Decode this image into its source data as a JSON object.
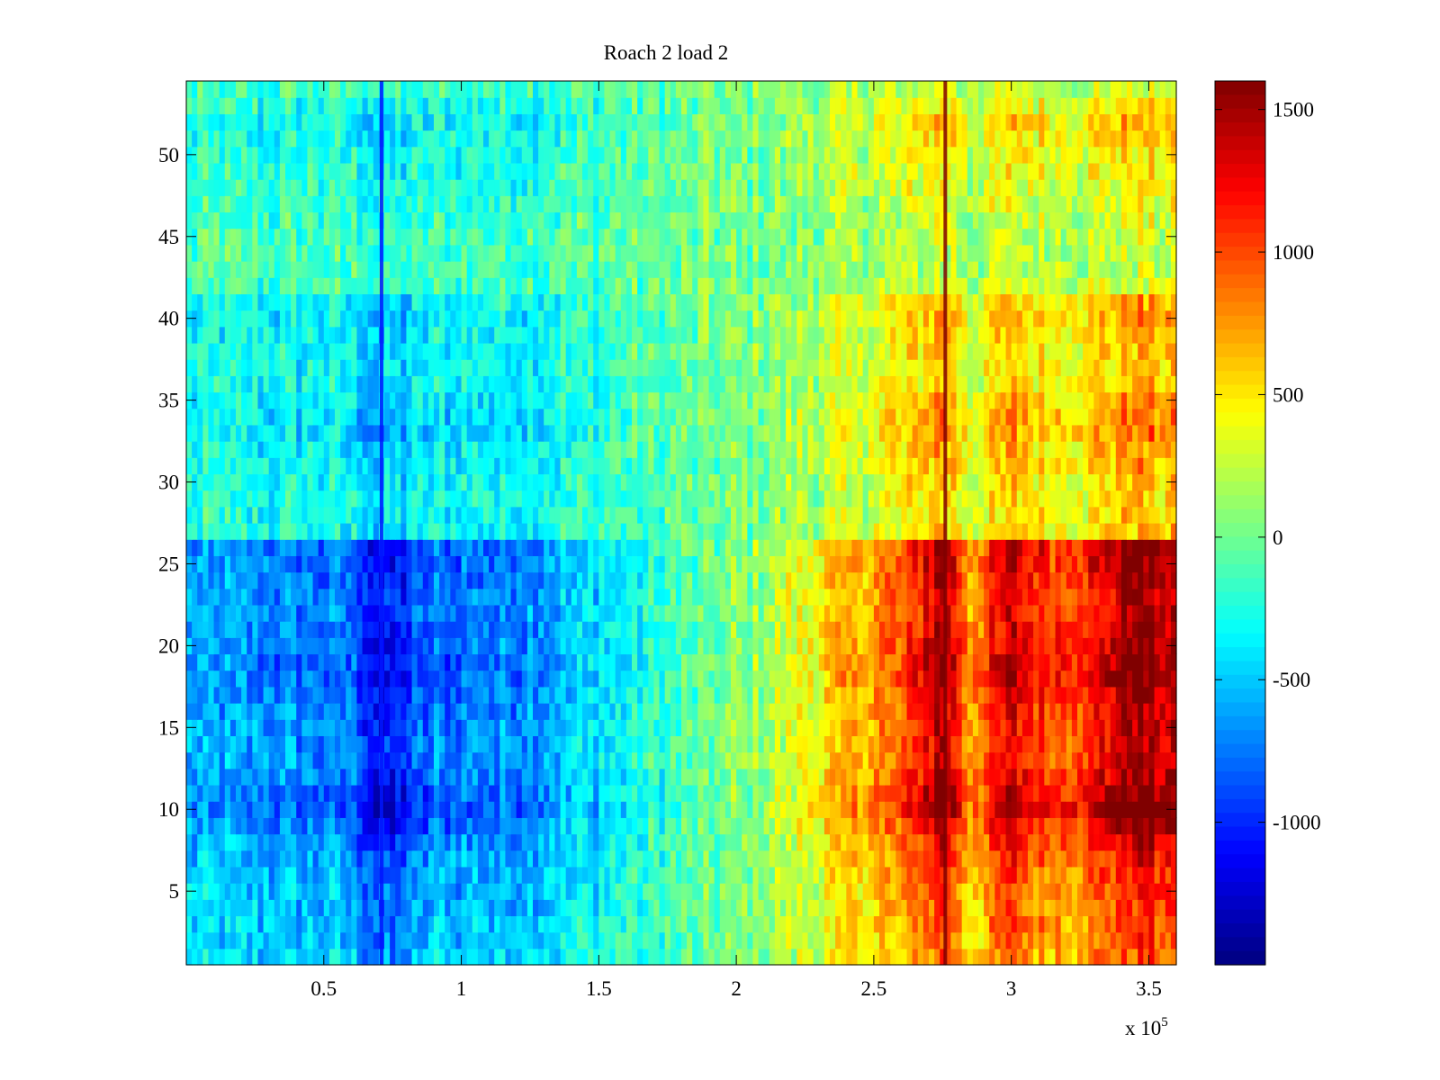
{
  "chart_data": {
    "type": "heatmap",
    "title": "Roach 2 load 2",
    "xlabel": "",
    "ylabel": "",
    "x_multiplier_label": "x 10",
    "x_multiplier_exponent": "5",
    "xlim": [
      0,
      3.6
    ],
    "ylim": [
      0.5,
      54.5
    ],
    "rows": 54,
    "x_ticks": [
      {
        "value": 0.5,
        "label": "0.5"
      },
      {
        "value": 1,
        "label": "1"
      },
      {
        "value": 1.5,
        "label": "1.5"
      },
      {
        "value": 2,
        "label": "2"
      },
      {
        "value": 2.5,
        "label": "2.5"
      },
      {
        "value": 3,
        "label": "3"
      },
      {
        "value": 3.5,
        "label": "3.5"
      }
    ],
    "y_ticks": [
      {
        "value": 5,
        "label": "5"
      },
      {
        "value": 10,
        "label": "10"
      },
      {
        "value": 15,
        "label": "15"
      },
      {
        "value": 20,
        "label": "20"
      },
      {
        "value": 25,
        "label": "25"
      },
      {
        "value": 30,
        "label": "30"
      },
      {
        "value": 35,
        "label": "35"
      },
      {
        "value": 40,
        "label": "40"
      },
      {
        "value": 45,
        "label": "45"
      },
      {
        "value": 50,
        "label": "50"
      }
    ],
    "colorbar": {
      "colormap": "jet",
      "clim": [
        -1500,
        1600
      ],
      "ticks": [
        {
          "value": 1500,
          "label": "1500"
        },
        {
          "value": 1000,
          "label": "1000"
        },
        {
          "value": 500,
          "label": "500"
        },
        {
          "value": 0,
          "label": "0"
        },
        {
          "value": -500,
          "label": "-500"
        },
        {
          "value": -1000,
          "label": "-1000"
        }
      ]
    },
    "profile_x": [
      0,
      0.3,
      0.6,
      0.72,
      0.9,
      1.2,
      1.5,
      1.8,
      2.1,
      2.4,
      2.6,
      2.75,
      2.85,
      3.0,
      3.15,
      3.3,
      3.45,
      3.6
    ],
    "profile_value": [
      -450,
      -500,
      -550,
      -850,
      -550,
      -500,
      -300,
      -100,
      100,
      450,
      650,
      1100,
      550,
      950,
      750,
      850,
      1150,
      950
    ],
    "row_factor": [
      0.9,
      0.95,
      1.0,
      1.0,
      1.05,
      1.1,
      1.15,
      1.25,
      1.4,
      1.6,
      1.5,
      1.4,
      1.3,
      1.3,
      1.35,
      1.35,
      1.4,
      1.5,
      1.5,
      1.45,
      1.4,
      1.35,
      1.35,
      1.4,
      1.45,
      1.45,
      0.6,
      0.55,
      0.55,
      0.6,
      0.65,
      0.7,
      0.8,
      0.8,
      0.7,
      0.6,
      0.6,
      0.6,
      0.65,
      0.7,
      0.65,
      0.3,
      0.25,
      0.25,
      0.25,
      0.3,
      0.35,
      0.4,
      0.45,
      0.5,
      0.55,
      0.6,
      0.45,
      0.3
    ],
    "features": [
      {
        "kind": "vertical-stripe",
        "x": 0.71,
        "value": -1050
      },
      {
        "kind": "vertical-stripe",
        "x": 2.76,
        "value": 1600
      }
    ]
  }
}
